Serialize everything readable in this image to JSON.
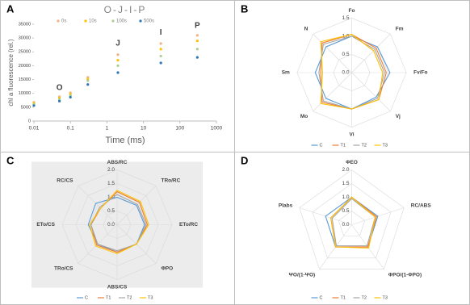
{
  "chart_data": [
    {
      "type": "scatter",
      "panel_label": "A",
      "title": "O-J-I-P",
      "x_label": "Time (ms)",
      "y_label": "chl a fluorescence (rel.)",
      "x": [
        0.01,
        0.05,
        0.1,
        0.3,
        2,
        30,
        300
      ],
      "series": [
        {
          "name": "0s",
          "color": "#f4b183",
          "values": [
            6800,
            8800,
            10200,
            15800,
            24000,
            28000,
            31000
          ]
        },
        {
          "name": "10s",
          "color": "#ffc000",
          "values": [
            6400,
            8300,
            9700,
            15200,
            22000,
            26000,
            29000
          ]
        },
        {
          "name": "100s",
          "color": "#a9d18e",
          "values": [
            6000,
            7800,
            9200,
            14600,
            20000,
            23500,
            26000
          ]
        },
        {
          "name": "500s",
          "color": "#2e75b6",
          "values": [
            5600,
            7200,
            8600,
            13200,
            17500,
            21000,
            23000
          ]
        }
      ],
      "log_x": true,
      "xlim": [
        0.01,
        1000
      ],
      "xticks": [
        0.01,
        0.1,
        1,
        10,
        100,
        1000
      ],
      "ylim": [
        0,
        35000
      ],
      "yticks": [
        0,
        5000,
        10000,
        15000,
        20000,
        25000,
        30000,
        35000
      ],
      "legend": "top",
      "annotations": [
        {
          "text": "O",
          "x": 0.05,
          "y": 12000
        },
        {
          "text": "J",
          "x": 2,
          "y": 28000
        },
        {
          "text": "I",
          "x": 30,
          "y": 32000
        },
        {
          "text": "P",
          "x": 300,
          "y": 34500
        }
      ]
    },
    {
      "type": "radar",
      "panel_label": "B",
      "axes": [
        "Fo",
        "Fm",
        "Fv/Fo",
        "Vj",
        "Vi",
        "Mo",
        "Sm",
        "N"
      ],
      "series": [
        {
          "name": "C",
          "color": "#5b9bd5",
          "values": [
            1.0,
            1.0,
            1.05,
            0.95,
            1.0,
            1.0,
            1.0,
            1.0
          ]
        },
        {
          "name": "T1",
          "color": "#ed7d31",
          "values": [
            1.05,
            0.95,
            0.95,
            1.05,
            1.0,
            1.15,
            0.85,
            1.15
          ]
        },
        {
          "name": "T2",
          "color": "#a5a5a5",
          "values": [
            1.0,
            0.9,
            0.9,
            1.0,
            1.0,
            1.1,
            0.9,
            1.1
          ]
        },
        {
          "name": "T3",
          "color": "#ffc000",
          "values": [
            1.05,
            0.85,
            0.85,
            1.05,
            1.0,
            1.2,
            0.8,
            1.2
          ]
        }
      ],
      "rlim": [
        0,
        1.5
      ],
      "rticks": [
        {
          "value": 0,
          "label": "0.0"
        },
        0.5,
        {
          "value": 1,
          "label": "1.0"
        },
        1.5
      ],
      "legend": "bottom"
    },
    {
      "type": "radar",
      "panel_label": "C",
      "axes": [
        "ABS/RC",
        "TRo/RC",
        "ETo/RC",
        "ΦPO",
        "ABS/CS",
        "TRo/CS",
        "ETo/CS",
        "RC/CS"
      ],
      "series": [
        {
          "name": "C",
          "color": "#5b9bd5",
          "values": [
            1.0,
            1.0,
            1.0,
            1.0,
            1.0,
            1.0,
            1.05,
            1.1
          ]
        },
        {
          "name": "T1",
          "color": "#ed7d31",
          "values": [
            1.2,
            1.15,
            1.1,
            1.0,
            1.0,
            1.05,
            0.95,
            0.85
          ]
        },
        {
          "name": "T2",
          "color": "#a5a5a5",
          "values": [
            1.1,
            1.05,
            1.05,
            1.0,
            0.95,
            1.0,
            0.95,
            0.9
          ]
        },
        {
          "name": "T3",
          "color": "#ffc000",
          "values": [
            1.25,
            1.2,
            1.15,
            1.0,
            1.05,
            1.1,
            1.0,
            0.85
          ]
        }
      ],
      "rlim": [
        0,
        2
      ],
      "rticks": [
        {
          "value": 0,
          "label": "0.0"
        },
        0.5,
        {
          "value": 1,
          "label": "1.0"
        },
        1.5,
        {
          "value": 2,
          "label": "2.0"
        }
      ],
      "legend": "bottom",
      "background": "#ececec"
    },
    {
      "type": "radar",
      "panel_label": "D",
      "axes": [
        "ΦEO",
        "RC/ABS",
        "ΦPO/(1-ΦPO)",
        "ΨO/(1-ΨO)",
        "PIabs"
      ],
      "series": [
        {
          "name": "C",
          "color": "#5b9bd5",
          "values": [
            1.0,
            1.0,
            1.0,
            1.0,
            1.0
          ]
        },
        {
          "name": "T1",
          "color": "#ed7d31",
          "values": [
            1.0,
            0.95,
            1.0,
            1.0,
            0.8
          ]
        },
        {
          "name": "T2",
          "color": "#a5a5a5",
          "values": [
            0.95,
            0.9,
            0.95,
            0.95,
            0.75
          ]
        },
        {
          "name": "T3",
          "color": "#ffc000",
          "values": [
            1.0,
            0.9,
            1.05,
            1.0,
            0.8
          ]
        }
      ],
      "rlim": [
        0,
        2
      ],
      "rticks": [
        {
          "value": 0,
          "label": "0.0"
        },
        0.5,
        {
          "value": 1,
          "label": "1.0"
        },
        1.5,
        {
          "value": 2,
          "label": "2.0"
        }
      ],
      "legend": "bottom"
    }
  ]
}
